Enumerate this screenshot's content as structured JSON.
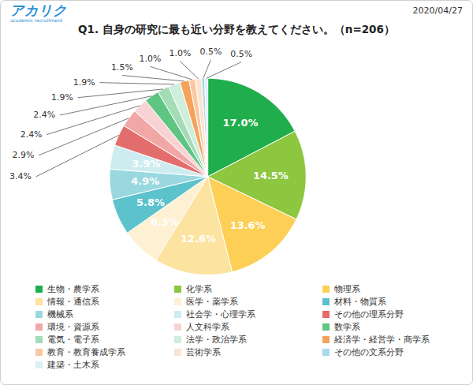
{
  "chart_data": {
    "type": "pie",
    "title": "Q1. 自身の研究に最も近い分野を教えてください。（n=206）",
    "annotations": [
      "アカリク",
      "academic recruitment",
      "2020/04/27"
    ],
    "categories": [
      "生物・農学系",
      "化学系",
      "物理系",
      "情報・通信系",
      "医学・薬学系",
      "材料・物質系",
      "機械系",
      "社会学・心理学系",
      "その他の理系分野",
      "環境・資源系",
      "人文科学系",
      "数学系",
      "電気・電子系",
      "法学・政治学系",
      "経済学・経営学・商学系",
      "教育・教育養成学系",
      "芸術学系",
      "その他の文系分野",
      "建築・土木系"
    ],
    "values": [
      17.0,
      14.5,
      13.6,
      12.6,
      6.3,
      5.8,
      4.9,
      3.9,
      3.4,
      2.9,
      2.4,
      2.4,
      1.9,
      1.9,
      1.5,
      1.0,
      1.0,
      0.5,
      0.5
    ],
    "value_labels": [
      "17.0%",
      "14.5%",
      "13.6%",
      "12.6%",
      "6.3%",
      "5.8%",
      "4.9%",
      "3.9%",
      "3.4%",
      "2.9%",
      "2.4%",
      "2.4%",
      "1.9%",
      "1.9%",
      "1.5%",
      "1.0%",
      "1.0%",
      "0.5%",
      "0.5%"
    ],
    "colors": [
      "#1fae4b",
      "#8dc63f",
      "#fdcf57",
      "#fde3a0",
      "#fef0d2",
      "#5cc2cc",
      "#99d8df",
      "#cdecf0",
      "#e36c6c",
      "#f2a7a7",
      "#f9d3d3",
      "#5fc583",
      "#a3dcb5",
      "#cfeedb",
      "#f5a35c",
      "#f9c8a2",
      "#fce3cf",
      "#a6dbe8",
      "#d9f0f6"
    ],
    "data_labels": true,
    "legend": "bottom",
    "tick_labels": false
  }
}
